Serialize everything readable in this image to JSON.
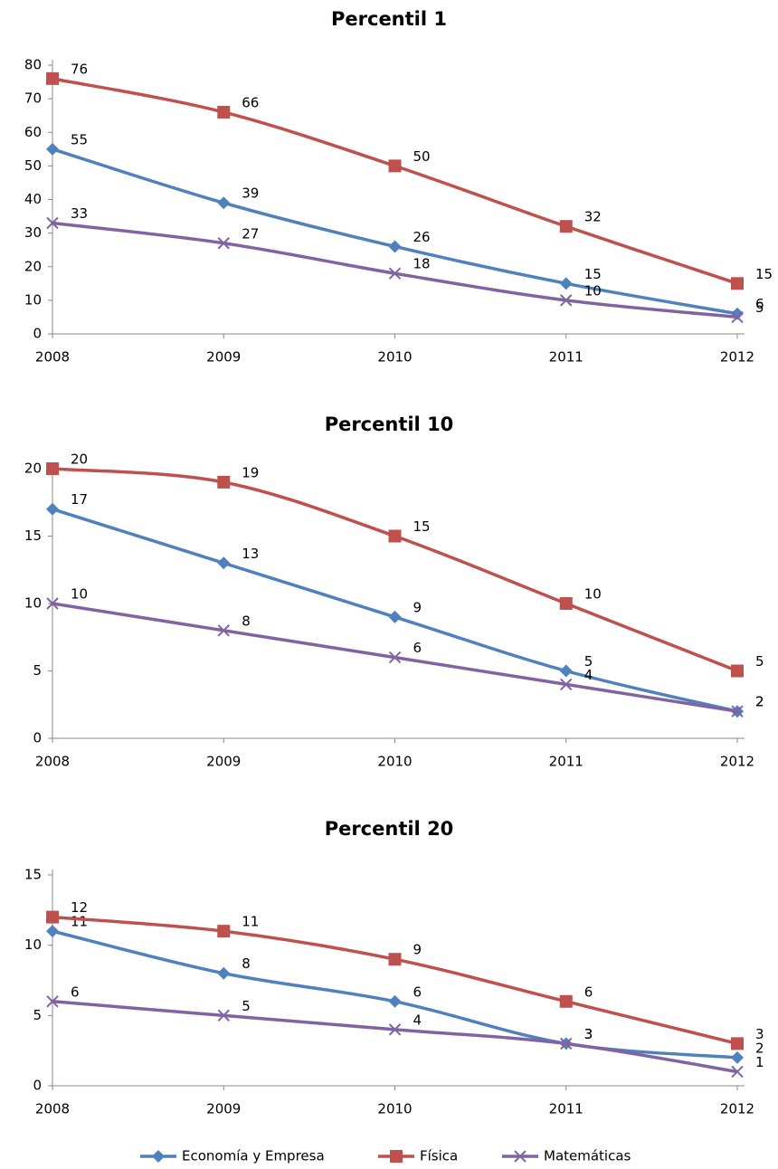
{
  "chart_data": [
    {
      "type": "line",
      "title": "Percentil 1",
      "categories": [
        "2008",
        "2009",
        "2010",
        "2011",
        "2012"
      ],
      "series": [
        {
          "color": "#4f81bd",
          "values": [
            55,
            39,
            26,
            15,
            6
          ]
        },
        {
          "color": "#c0504d",
          "values": [
            76,
            66,
            50,
            32,
            15
          ]
        },
        {
          "color": "#8064a2",
          "values": [
            33,
            27,
            18,
            10,
            5
          ]
        }
      ],
      "ylim": [
        0,
        80
      ],
      "yticks": [
        0,
        10,
        20,
        30,
        40,
        50,
        60,
        70,
        80
      ]
    },
    {
      "type": "line",
      "title": "Percentil 10",
      "categories": [
        "2008",
        "2009",
        "2010",
        "2011",
        "2012"
      ],
      "series": [
        {
          "color": "#4f81bd",
          "values": [
            17,
            13,
            9,
            5,
            2
          ]
        },
        {
          "color": "#c0504d",
          "values": [
            20,
            19,
            15,
            10,
            5
          ]
        },
        {
          "color": "#8064a2",
          "values": [
            10,
            8,
            6,
            4,
            2
          ]
        }
      ],
      "ylim": [
        0,
        20
      ],
      "yticks": [
        0,
        5,
        10,
        15,
        20
      ]
    },
    {
      "type": "line",
      "title": "Percentil 20",
      "categories": [
        "2008",
        "2009",
        "2010",
        "2011",
        "2012"
      ],
      "series": [
        {
          "name": "Economía y Empresa",
          "color": "#4f81bd",
          "values": [
            11,
            8,
            6,
            3,
            2
          ]
        },
        {
          "name": "Física",
          "color": "#c0504d",
          "values": [
            12,
            11,
            9,
            6,
            3
          ]
        },
        {
          "name": "Matemáticas",
          "color": "#8064a2",
          "values": [
            6,
            5,
            4,
            3,
            1
          ]
        }
      ],
      "ylim": [
        0,
        15
      ],
      "yticks": [
        0,
        5,
        10,
        15
      ]
    }
  ]
}
